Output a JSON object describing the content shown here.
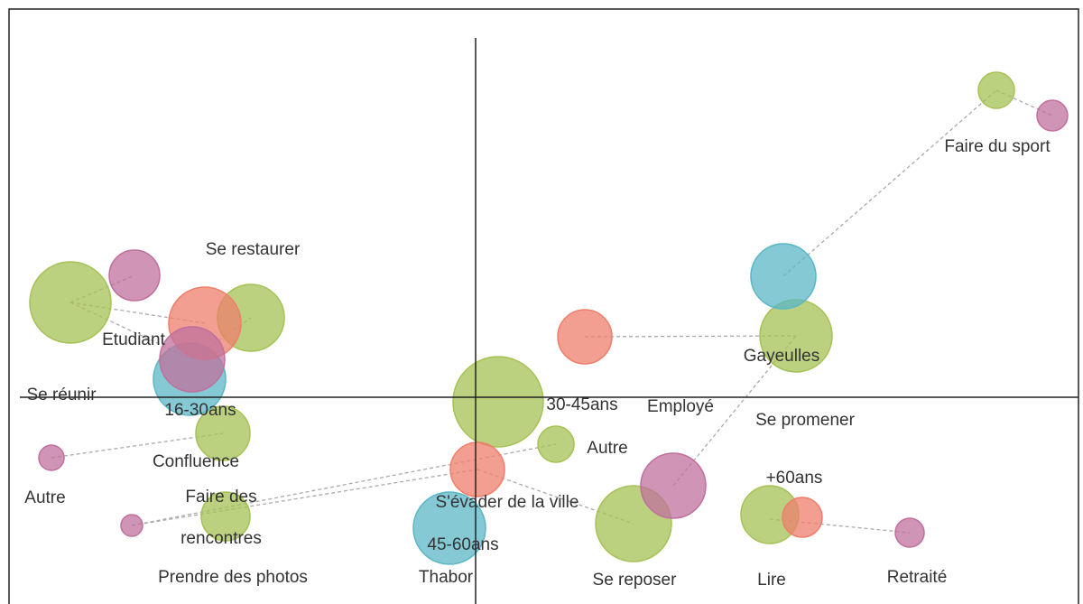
{
  "chart_data": {
    "type": "bubble",
    "xlim": [
      -5.17,
      6.68
    ],
    "ylim": [
      -2.29,
      4.3
    ],
    "series": [
      {
        "color": "#a5c255",
        "x": [
          -4.49,
          -2.49,
          -2.8,
          -2.77,
          0.25,
          0.89,
          1.75,
          3.55,
          3.26,
          5.77
        ],
        "values": [
          1.05,
          0.88,
          -0.4,
          -1.32,
          -0.05,
          -0.52,
          -1.4,
          0.68,
          -1.3,
          3.4
        ],
        "sizes": [
          0.45,
          0.37,
          0.3,
          0.27,
          0.5,
          0.2,
          0.42,
          0.4,
          0.32,
          0.2
        ]
      },
      {
        "color": "#5bb7c6",
        "x": [
          -3.17,
          -0.29,
          3.41
        ],
        "values": [
          0.2,
          -1.45,
          1.34
        ],
        "sizes": [
          0.4,
          0.4,
          0.36
        ]
      },
      {
        "color": "#ee7f6c",
        "x": [
          -3.0,
          0.02,
          1.21,
          3.62
        ],
        "values": [
          0.82,
          -0.8,
          0.67,
          -1.33
        ],
        "sizes": [
          0.4,
          0.3,
          0.3,
          0.22
        ]
      },
      {
        "color": "#c0709d",
        "x": [
          -3.78,
          -3.14,
          -4.7,
          -3.81,
          2.19,
          4.81,
          6.39
        ],
        "values": [
          1.35,
          0.42,
          -0.67,
          -1.42,
          -0.98,
          -1.5,
          3.12
        ],
        "sizes": [
          0.28,
          0.36,
          0.14,
          0.12,
          0.36,
          0.16,
          0.17
        ]
      }
    ],
    "annotations": [
      {
        "text": "Se réunir",
        "x": -4.59,
        "y": 0.02
      },
      {
        "text": "Etudiant",
        "x": -3.79,
        "y": 0.63
      },
      {
        "text": "Se restaurer",
        "x": -2.47,
        "y": 1.63
      },
      {
        "text": "16-30ans",
        "x": -3.05,
        "y": -0.15
      },
      {
        "text": "Confluence",
        "x": -3.1,
        "y": -0.72
      },
      {
        "text": "Autre",
        "x": -4.77,
        "y": -1.12
      },
      {
        "text": "Faire des",
        "x": -2.82,
        "y": -1.11
      },
      {
        "text": "rencontres",
        "x": -2.82,
        "y": -1.57
      },
      {
        "text": "Prendre des photos",
        "x": -2.69,
        "y": -2.0
      },
      {
        "text": "30-45ans",
        "x": 1.18,
        "y": -0.09
      },
      {
        "text": "Employé",
        "x": 2.27,
        "y": -0.11
      },
      {
        "text": "Autre",
        "x": 1.46,
        "y": -0.57
      },
      {
        "text": "S'évader de la ville",
        "x": 0.35,
        "y": -1.17
      },
      {
        "text": "45-60ans",
        "x": -0.14,
        "y": -1.64
      },
      {
        "text": "Thabor",
        "x": -0.33,
        "y": -2.0
      },
      {
        "text": "Se reposer",
        "x": 1.76,
        "y": -2.03
      },
      {
        "text": "Gayeulles",
        "x": 3.39,
        "y": 0.45
      },
      {
        "text": "Se promener",
        "x": 3.65,
        "y": -0.26
      },
      {
        "text": "+60ans",
        "x": 3.53,
        "y": -0.9
      },
      {
        "text": "Lire",
        "x": 3.28,
        "y": -2.03
      },
      {
        "text": "Retraité",
        "x": 4.89,
        "y": -2.0
      },
      {
        "text": "Faire du sport",
        "x": 5.78,
        "y": 2.77
      }
    ]
  }
}
